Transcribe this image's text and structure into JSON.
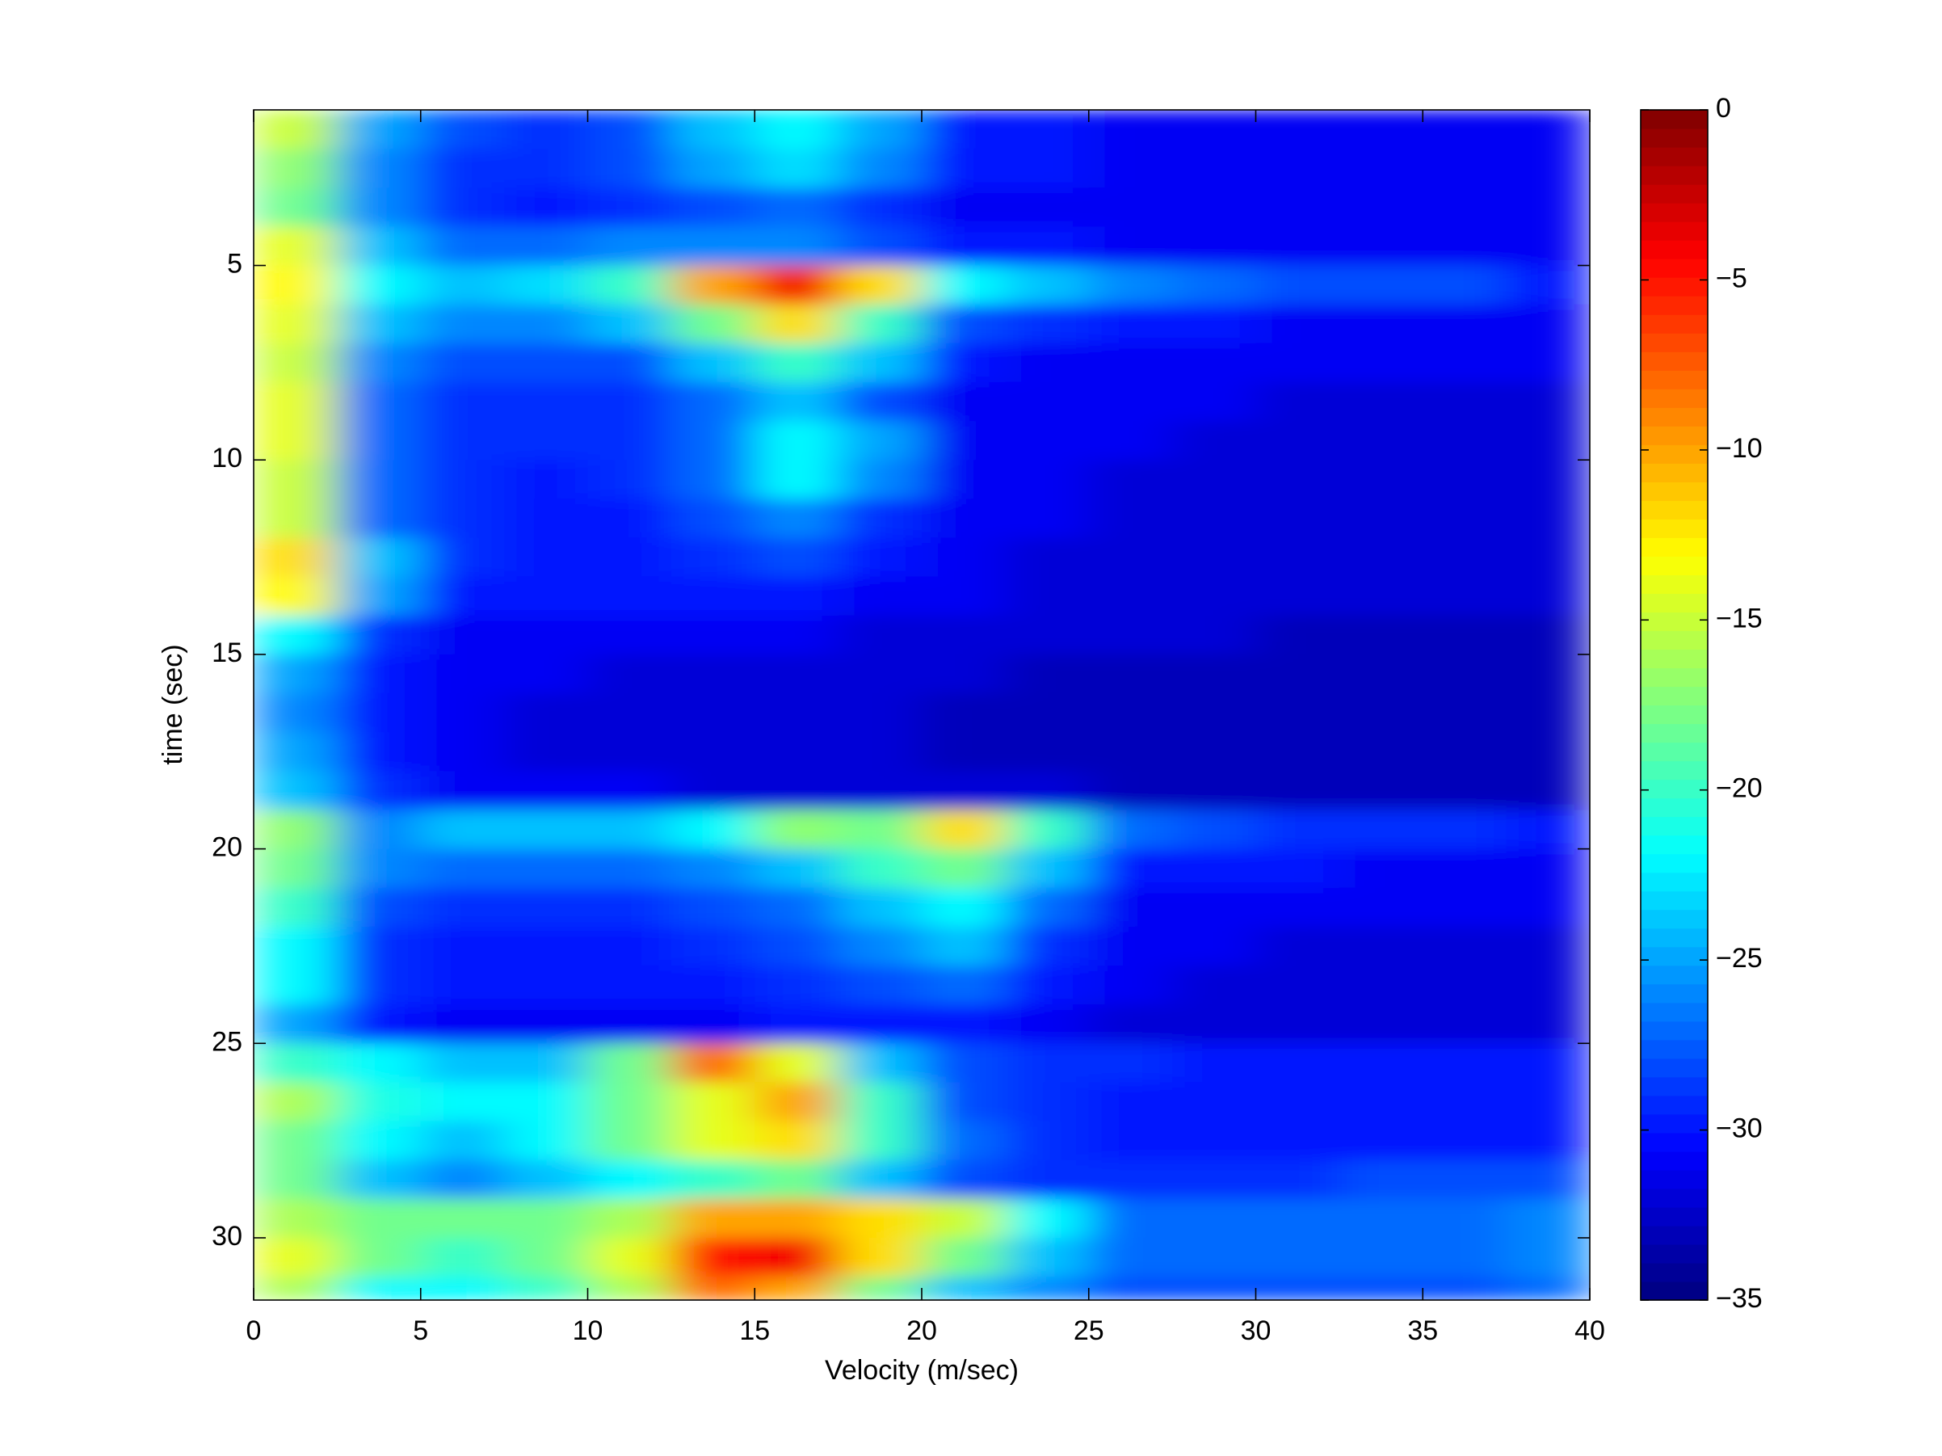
{
  "chart_data": {
    "type": "heatmap",
    "x_label": "Velocity (m/sec)",
    "y_label": "time (sec)",
    "x_bins": [
      0,
      2.5,
      5,
      7.5,
      10,
      12.5,
      15,
      17.5,
      20,
      22.5,
      25,
      27.5,
      30,
      32.5,
      35,
      37.5,
      40
    ],
    "y_bins": [
      1,
      2,
      3,
      4,
      5,
      6,
      7,
      8,
      9,
      10,
      11,
      12,
      13,
      14,
      15,
      16,
      17,
      18,
      19,
      20,
      21,
      22,
      23,
      24,
      25,
      26,
      27,
      28,
      29,
      30,
      31,
      31.6
    ],
    "z": [
      [
        -15,
        -25,
        -28,
        -29,
        -28,
        -24,
        -22,
        -25,
        -30,
        -30,
        -31,
        -31,
        -31,
        -31,
        -31,
        -31
      ],
      [
        -17,
        -26,
        -29,
        -29,
        -28,
        -25,
        -23,
        -26,
        -30,
        -30,
        -31,
        -31,
        -31,
        -31,
        -31,
        -31
      ],
      [
        -18,
        -26,
        -29,
        -30,
        -29,
        -28,
        -27,
        -29,
        -31,
        -31,
        -31,
        -31,
        -31,
        -31,
        -31,
        -31
      ],
      [
        -14,
        -24,
        -27,
        -27,
        -26,
        -26,
        -26,
        -28,
        -30,
        -30,
        -31,
        -31,
        -31,
        -31,
        -31,
        -31
      ],
      [
        -13,
        -22,
        -24,
        -23,
        -20,
        -10,
        -4,
        -12,
        -22,
        -24,
        -26,
        -27,
        -28,
        -28,
        -28,
        -30
      ],
      [
        -14,
        -24,
        -26,
        -26,
        -24,
        -18,
        -12,
        -20,
        -28,
        -29,
        -30,
        -30,
        -31,
        -31,
        -31,
        -31
      ],
      [
        -15,
        -26,
        -28,
        -28,
        -28,
        -24,
        -20,
        -24,
        -30,
        -31,
        -31,
        -31,
        -31,
        -31,
        -31,
        -31
      ],
      [
        -14,
        -27,
        -29,
        -29,
        -29,
        -27,
        -24,
        -28,
        -31,
        -31,
        -31,
        -31,
        -32,
        -32,
        -32,
        -32
      ],
      [
        -14,
        -27,
        -29,
        -29,
        -29,
        -27,
        -22,
        -25,
        -31,
        -31,
        -31,
        -32,
        -32,
        -32,
        -32,
        -32
      ],
      [
        -15,
        -27,
        -29,
        -30,
        -29,
        -27,
        -22,
        -26,
        -31,
        -31,
        -32,
        -32,
        -32,
        -32,
        -32,
        -32
      ],
      [
        -15,
        -27,
        -29,
        -30,
        -30,
        -28,
        -26,
        -29,
        -31,
        -31,
        -32,
        -32,
        -32,
        -32,
        -32,
        -32
      ],
      [
        -12,
        -24,
        -29,
        -30,
        -30,
        -29,
        -28,
        -30,
        -31,
        -32,
        -32,
        -32,
        -32,
        -32,
        -32,
        -32
      ],
      [
        -13,
        -25,
        -30,
        -30,
        -30,
        -30,
        -30,
        -31,
        -31,
        -32,
        -32,
        -32,
        -32,
        -32,
        -32,
        -32
      ],
      [
        -22,
        -29,
        -31,
        -31,
        -31,
        -31,
        -31,
        -32,
        -32,
        -32,
        -32,
        -32,
        -33,
        -33,
        -33,
        -33
      ],
      [
        -25,
        -30,
        -31,
        -31,
        -32,
        -32,
        -32,
        -32,
        -32,
        -33,
        -33,
        -33,
        -33,
        -33,
        -33,
        -33
      ],
      [
        -26,
        -30,
        -31,
        -32,
        -32,
        -32,
        -32,
        -32,
        -33,
        -33,
        -33,
        -33,
        -33,
        -33,
        -33,
        -33
      ],
      [
        -25,
        -30,
        -31,
        -32,
        -32,
        -32,
        -32,
        -32,
        -33,
        -33,
        -33,
        -33,
        -33,
        -33,
        -33,
        -33
      ],
      [
        -24,
        -29,
        -31,
        -31,
        -31,
        -32,
        -32,
        -32,
        -32,
        -32,
        -33,
        -33,
        -33,
        -33,
        -33,
        -33
      ],
      [
        -17,
        -26,
        -24,
        -24,
        -24,
        -22,
        -17,
        -18,
        -12,
        -20,
        -27,
        -28,
        -29,
        -29,
        -29,
        -30
      ],
      [
        -18,
        -26,
        -27,
        -27,
        -27,
        -26,
        -24,
        -20,
        -18,
        -24,
        -30,
        -30,
        -30,
        -31,
        -31,
        -31
      ],
      [
        -20,
        -28,
        -29,
        -29,
        -29,
        -28,
        -27,
        -24,
        -22,
        -27,
        -31,
        -31,
        -31,
        -31,
        -31,
        -31
      ],
      [
        -22,
        -29,
        -30,
        -30,
        -30,
        -29,
        -28,
        -26,
        -24,
        -29,
        -31,
        -31,
        -32,
        -32,
        -32,
        -32
      ],
      [
        -22,
        -29,
        -30,
        -30,
        -30,
        -30,
        -29,
        -28,
        -27,
        -30,
        -31,
        -32,
        -32,
        -32,
        -32,
        -32
      ],
      [
        -25,
        -30,
        -31,
        -31,
        -31,
        -31,
        -30,
        -30,
        -30,
        -31,
        -32,
        -32,
        -32,
        -32,
        -32,
        -32
      ],
      [
        -20,
        -22,
        -24,
        -24,
        -18,
        -8,
        -14,
        -24,
        -28,
        -29,
        -29,
        -30,
        -30,
        -30,
        -30,
        -30
      ],
      [
        -16,
        -21,
        -22,
        -22,
        -18,
        -14,
        -10,
        -20,
        -28,
        -29,
        -30,
        -30,
        -30,
        -30,
        -30,
        -30
      ],
      [
        -18,
        -22,
        -24,
        -22,
        -18,
        -14,
        -12,
        -20,
        -27,
        -29,
        -30,
        -30,
        -30,
        -30,
        -30,
        -30
      ],
      [
        -18,
        -24,
        -26,
        -24,
        -22,
        -20,
        -18,
        -24,
        -28,
        -29,
        -29,
        -29,
        -29,
        -28,
        -28,
        -28
      ],
      [
        -16,
        -18,
        -18,
        -18,
        -16,
        -10,
        -10,
        -12,
        -15,
        -22,
        -27,
        -27,
        -27,
        -27,
        -27,
        -26
      ],
      [
        -14,
        -18,
        -20,
        -18,
        -14,
        -5,
        -4,
        -12,
        -18,
        -24,
        -27,
        -27,
        -27,
        -27,
        -27,
        -26
      ],
      [
        -16,
        -22,
        -22,
        -20,
        -16,
        -8,
        -10,
        -18,
        -24,
        -26,
        -28,
        -28,
        -28,
        -28,
        -28,
        -27
      ]
    ],
    "xlim": [
      0,
      40
    ],
    "xticks": [
      0,
      5,
      10,
      15,
      20,
      25,
      30,
      35,
      40
    ],
    "ylim": [
      1,
      31.6
    ],
    "y_reversed": true,
    "yticks": [
      5,
      10,
      15,
      20,
      25,
      30
    ],
    "colormap": "jet",
    "clim": [
      -35,
      0
    ],
    "cticks": [
      {
        "value": -35,
        "label": "−35"
      },
      {
        "value": -30,
        "label": "−30"
      },
      {
        "value": -25,
        "label": "−25"
      },
      {
        "value": -20,
        "label": "−20"
      },
      {
        "value": -15,
        "label": "−15"
      },
      {
        "value": -10,
        "label": "−10"
      },
      {
        "value": -5,
        "label": "−5"
      },
      0
    ]
  }
}
